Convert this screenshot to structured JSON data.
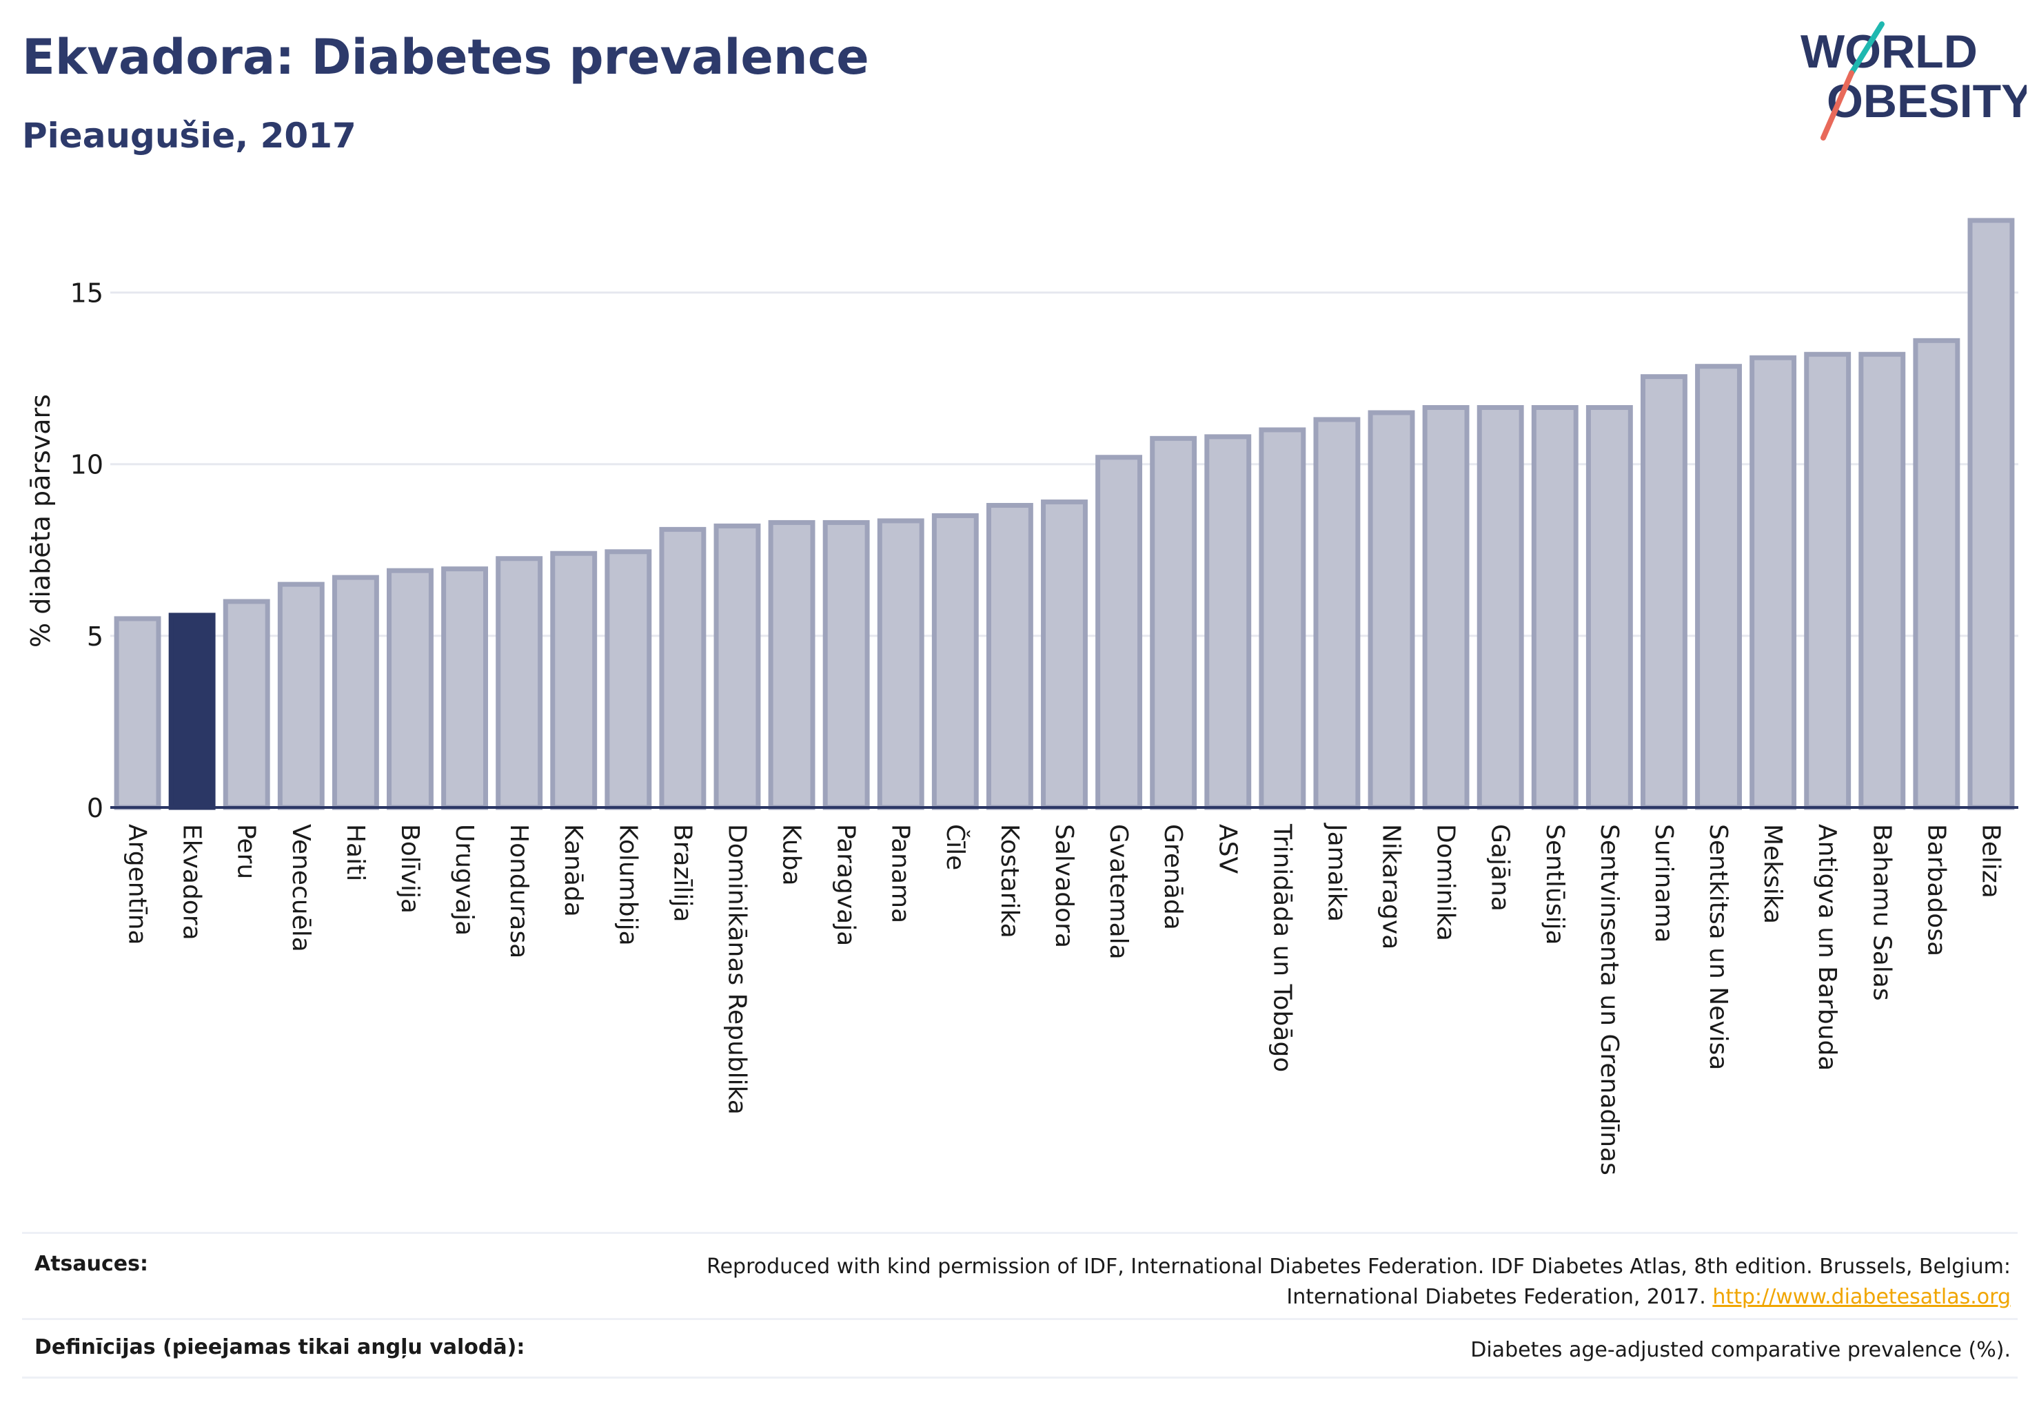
{
  "header": {
    "title": "Ekvadora: Diabetes prevalence",
    "subtitle": "Pieaugušie, 2017"
  },
  "logo": {
    "line1": "WORLD",
    "line2": "OBESITY"
  },
  "chart_data": {
    "type": "bar",
    "title": "Ekvadora: Diabetes prevalence",
    "subtitle": "Pieaugušie, 2017",
    "ylabel": "% diabēta pārsvars",
    "xlabel": "",
    "ylim": [
      0,
      17.5
    ],
    "yticks": [
      0,
      5,
      10,
      15
    ],
    "grid": true,
    "highlight": "Ekvadora",
    "colors": {
      "bar": "#bfc2d1",
      "bar_border": "#9ea3bb",
      "highlight": "#2b3765"
    },
    "categories": [
      "Argentīna",
      "Ekvadora",
      "Peru",
      "Venecuēla",
      "Haiti",
      "Bolīvija",
      "Urugvaja",
      "Hondurasa",
      "Kanāda",
      "Kolumbija",
      "Brazīlija",
      "Dominikānas Republika",
      "Kuba",
      "Paragvaja",
      "Panama",
      "Čīle",
      "Kostarika",
      "Salvadora",
      "Gvatemala",
      "Grenāda",
      "ASV",
      "Trinidāda un Tobāgo",
      "Jamaika",
      "Nikaragva",
      "Dominika",
      "Gajāna",
      "Sentlūsija",
      "Sentvinsenta un Grenadīnas",
      "Surinama",
      "Sentkitsa un Nevisa",
      "Meksika",
      "Antigva un Barbuda",
      "Bahamu Salas",
      "Barbadosa",
      "Beliza"
    ],
    "values": [
      5.5,
      5.6,
      6.0,
      6.5,
      6.7,
      6.9,
      6.95,
      7.25,
      7.4,
      7.45,
      8.1,
      8.2,
      8.3,
      8.3,
      8.35,
      8.5,
      8.8,
      8.9,
      10.2,
      10.75,
      10.8,
      11.0,
      11.3,
      11.5,
      11.65,
      11.65,
      11.65,
      11.65,
      12.55,
      12.85,
      13.1,
      13.2,
      13.2,
      13.6,
      17.1
    ]
  },
  "footer": {
    "sources_label": "Atsauces:",
    "sources_text_1": "Reproduced with kind permission of IDF, International Diabetes Federation. IDF Diabetes Atlas, 8th edition. Brussels, Belgium:",
    "sources_text_2": "International Diabetes Federation, 2017.",
    "sources_link": "http://www.diabetesatlas.org",
    "definitions_label": "Definīcijas (pieejamas tikai angļu valodā):",
    "definitions_text": "Diabetes age-adjusted comparative prevalence (%)."
  }
}
